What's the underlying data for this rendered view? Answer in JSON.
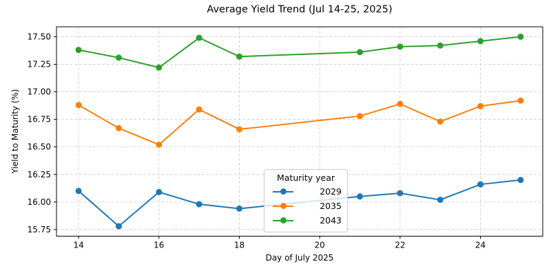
{
  "chart_data": {
    "type": "line",
    "title": "Average Yield Trend (Jul 14-25, 2025)",
    "xlabel": "Day of July 2025",
    "ylabel": "Yield to Maturity (%)",
    "x": [
      14,
      15,
      16,
      17,
      18,
      21,
      22,
      23,
      24,
      25
    ],
    "series": [
      {
        "name": "2029",
        "color": "#1f77b4",
        "values": [
          16.1,
          15.78,
          16.09,
          15.98,
          15.94,
          16.05,
          16.08,
          16.02,
          16.16,
          16.2
        ]
      },
      {
        "name": "2035",
        "color": "#ff7f0e",
        "values": [
          16.88,
          16.67,
          16.52,
          16.84,
          16.66,
          16.78,
          16.89,
          16.73,
          16.87,
          16.92
        ]
      },
      {
        "name": "2043",
        "color": "#2ca02c",
        "values": [
          17.38,
          17.31,
          17.22,
          17.49,
          17.32,
          17.36,
          17.41,
          17.42,
          17.46,
          17.5
        ]
      }
    ],
    "xticks": [
      14,
      16,
      18,
      20,
      22,
      24
    ],
    "yticks": [
      15.75,
      16.0,
      16.25,
      16.5,
      16.75,
      17.0,
      17.25,
      17.5
    ],
    "xlim": [
      13.45,
      25.55
    ],
    "ylim": [
      15.69,
      17.59
    ],
    "grid": true,
    "grid_color": "#d0d0d0",
    "spine_color": "#000000",
    "legend": {
      "title": "Maturity year",
      "entries": [
        "2029",
        "2035",
        "2043"
      ],
      "position": "lower center"
    }
  }
}
